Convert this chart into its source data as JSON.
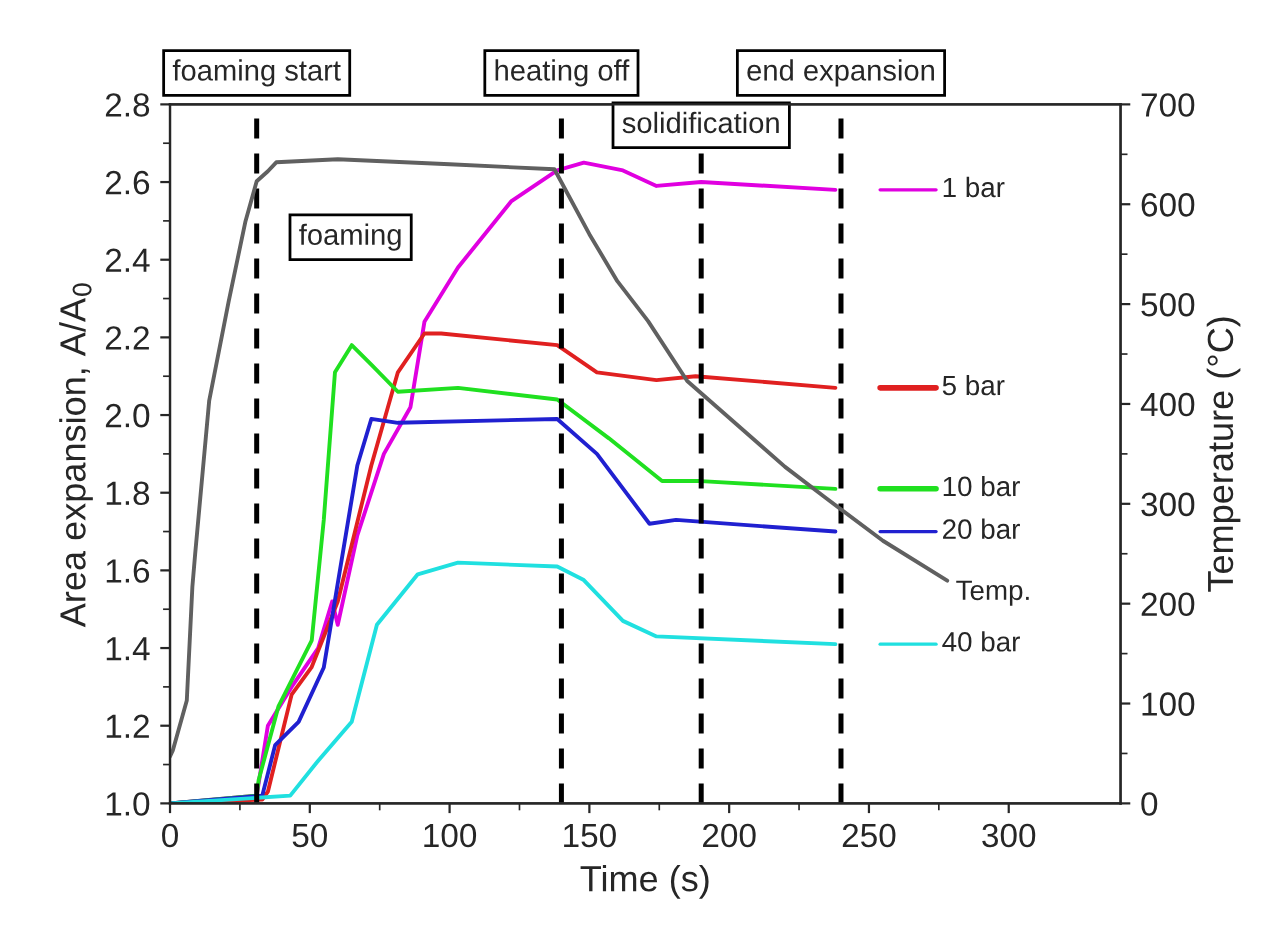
{
  "chart_data": {
    "type": "line",
    "xlabel": "Time (s)",
    "ylabel": "Area expansion, A/A$_{0}$",
    "y2label": "Temperature (°C)",
    "xlim": [
      0,
      340
    ],
    "xticks": [
      0,
      50,
      100,
      150,
      200,
      250,
      300
    ],
    "ylim": [
      1.0,
      2.8
    ],
    "yticks": [
      {
        "value": 1.0,
        "label": "1.0"
      },
      {
        "value": 1.2,
        "label": "1.2"
      },
      {
        "value": 1.4,
        "label": "1.4"
      },
      {
        "value": 1.6,
        "label": "1.6"
      },
      {
        "value": 1.8,
        "label": "1.8"
      },
      {
        "value": 2.0,
        "label": "2.0"
      },
      {
        "value": 2.2,
        "label": "2.2"
      },
      {
        "value": 2.4,
        "label": "2.4"
      },
      {
        "value": 2.6,
        "label": "2.6"
      },
      {
        "value": 2.8,
        "label": "2.8"
      }
    ],
    "y2lim": [
      0,
      700
    ],
    "y2ticks": [
      0,
      100,
      200,
      300,
      400,
      500,
      600,
      700
    ],
    "grid": false,
    "legend": "right",
    "marker": "none",
    "line_style": "solid",
    "series": [
      {
        "name": "1 bar",
        "color": "#e000e0",
        "x": [
          0,
          31,
          35,
          43.5,
          53,
          58,
          60,
          67,
          76.5,
          86,
          91,
          103,
          122,
          138.5,
          148,
          162,
          174,
          190,
          238
        ],
        "values": [
          1.0,
          1.02,
          1.2,
          1.3,
          1.4,
          1.52,
          1.46,
          1.69,
          1.9,
          2.02,
          2.24,
          2.38,
          2.55,
          2.63,
          2.65,
          2.63,
          2.59,
          2.6,
          2.58
        ]
      },
      {
        "name": "5 bar",
        "color": "#e02020",
        "x": [
          0,
          33,
          35,
          43.5,
          50.6,
          60,
          72,
          81.5,
          91,
          97,
          138.5,
          152.7,
          174,
          188,
          238
        ],
        "values": [
          1.0,
          1.01,
          1.03,
          1.28,
          1.35,
          1.52,
          1.87,
          2.11,
          2.21,
          2.21,
          2.18,
          2.11,
          2.09,
          2.1,
          2.07
        ]
      },
      {
        "name": "10 bar",
        "color": "#20e020",
        "x": [
          0,
          31,
          31.7,
          38.8,
          50.7,
          55,
          59,
          65,
          72,
          81.5,
          103,
          138.5,
          157,
          176,
          190,
          238
        ],
        "values": [
          1.0,
          1.02,
          1.06,
          1.25,
          1.42,
          1.73,
          2.11,
          2.18,
          2.13,
          2.06,
          2.07,
          2.04,
          1.94,
          1.83,
          1.83,
          1.81
        ]
      },
      {
        "name": "20 bar",
        "color": "#2020d0",
        "x": [
          0,
          33,
          37.6,
          46,
          55,
          67,
          72,
          81.5,
          138.5,
          152.7,
          171.5,
          181,
          238
        ],
        "values": [
          1.0,
          1.02,
          1.15,
          1.21,
          1.35,
          1.87,
          1.99,
          1.98,
          1.99,
          1.9,
          1.72,
          1.73,
          1.7
        ]
      },
      {
        "name": "40 bar",
        "color": "#20e0e0",
        "x": [
          0,
          43,
          53,
          65,
          74,
          88.6,
          103,
          138.5,
          148,
          162,
          174,
          238
        ],
        "values": [
          1.0,
          1.02,
          1.11,
          1.21,
          1.46,
          1.59,
          1.62,
          1.61,
          1.575,
          1.47,
          1.43,
          1.41
        ]
      },
      {
        "name": "Temp.",
        "color": "#606060",
        "axis": "y2",
        "x": [
          0,
          1,
          6,
          8,
          9,
          14,
          21,
          27,
          31,
          35,
          38,
          60,
          100,
          137.5,
          150,
          160,
          171,
          185,
          220,
          234,
          255,
          278
        ],
        "values": [
          47,
          53,
          103,
          217,
          250,
          403,
          503,
          583,
          623,
          633,
          642,
          645,
          640,
          635,
          570,
          523,
          483,
          423,
          337,
          307,
          263,
          223
        ]
      }
    ],
    "ref_lines": [
      {
        "axis": "x",
        "value": 31,
        "label": "foaming start",
        "line_style": "dashed",
        "color": "#000000"
      },
      {
        "axis": "x",
        "value": 140,
        "label": "heating off",
        "line_style": "dashed",
        "color": "#000000"
      },
      {
        "axis": "x",
        "value": 190,
        "label": "solidification",
        "line_style": "dashed",
        "color": "#000000"
      },
      {
        "axis": "x",
        "value": 240,
        "label": "end expansion",
        "line_style": "dashed",
        "color": "#000000"
      }
    ],
    "annotations": [
      "foaming"
    ]
  }
}
